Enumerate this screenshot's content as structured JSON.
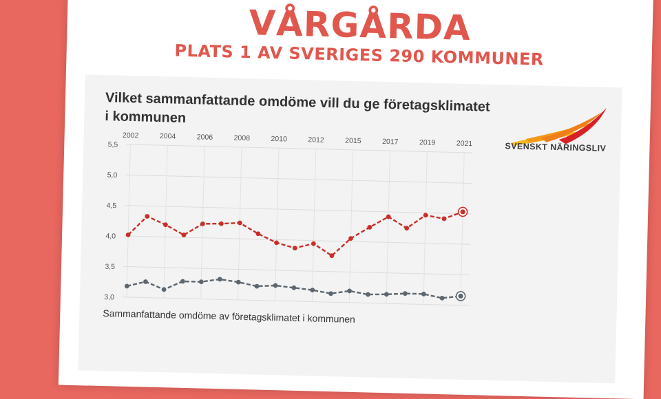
{
  "headline": {
    "title": "VÅRGÅRDA",
    "subtitle": "PLATS 1 AV SVERIGES 290 KOMMUNER"
  },
  "logo": {
    "text": "SVENSKT NÄRINGSLIV",
    "colors": [
      "#f5b81c",
      "#ef7f1a",
      "#d92027"
    ]
  },
  "chart_data": {
    "type": "line",
    "title": "Vilket sammanfattande omdöme vill du ge företagsklimatet i kommunen",
    "caption": "Sammanfattande omdöme av företagsklimatet i kommunen",
    "x_labels": [
      "2002",
      "2004",
      "2006",
      "2008",
      "2010",
      "2012",
      "2015",
      "2017",
      "2019",
      "2021"
    ],
    "y_ticks": [
      "5,5",
      "5,0",
      "4,5",
      "4,0",
      "3,5",
      "3,0"
    ],
    "ylim": [
      3.0,
      5.5
    ],
    "grid": true,
    "series": [
      {
        "color": "#c7302a",
        "values": [
          4.02,
          4.33,
          4.2,
          4.04,
          4.23,
          4.24,
          4.26,
          4.09,
          3.95,
          3.87,
          3.95,
          3.76,
          4.05,
          4.24,
          4.42,
          4.24,
          4.46,
          4.41,
          4.53
        ]
      },
      {
        "color": "#5d6770",
        "values": [
          3.18,
          3.26,
          3.14,
          3.28,
          3.28,
          3.33,
          3.29,
          3.23,
          3.25,
          3.22,
          3.19,
          3.14,
          3.19,
          3.14,
          3.15,
          3.17,
          3.17,
          3.11,
          3.15
        ]
      }
    ]
  }
}
